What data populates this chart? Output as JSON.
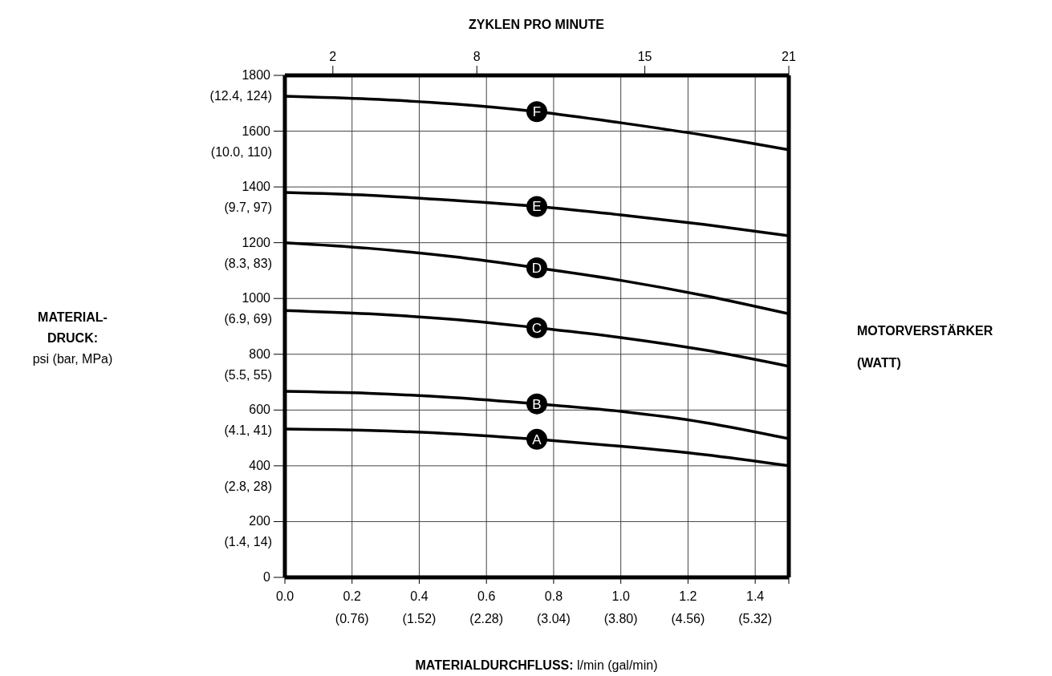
{
  "chart_data": {
    "type": "line",
    "x2label": "ZYKLEN PRO MINUTE",
    "xlabel": "MATERIALDURCHFLUSS: l/min (gal/min)",
    "annotations": [
      "MOTORVERSTÄRKER (WATT)",
      "MATERIAL-DRUCK: psi (bar, MPa)",
      "(0.76)",
      "(1.52)",
      "(2.28)",
      "(3.04)",
      "(3.80)",
      "(4.56)",
      "(5.32)",
      "(1.4, 14)",
      "(2.8, 28)",
      "(4.1, 41)",
      "(5.5, 55)",
      "(6.9, 69)",
      "(8.3, 83)",
      "(9.7, 97)",
      "(10.0, 110)",
      "(12.4, 124)"
    ],
    "x": [
      0,
      0.25,
      0.5,
      0.75,
      1.0,
      1.25,
      1.5
    ],
    "series": [
      {
        "name": "A",
        "color": "#000000",
        "values": [
          532,
          527,
          515,
          495,
          470,
          440,
          400
        ]
      },
      {
        "name": "B",
        "color": "#000000",
        "values": [
          667,
          660,
          645,
          622,
          595,
          555,
          497
        ]
      },
      {
        "name": "C",
        "color": "#000000",
        "values": [
          957,
          945,
          925,
          895,
          860,
          815,
          757
        ]
      },
      {
        "name": "D",
        "color": "#000000",
        "values": [
          1200,
          1180,
          1150,
          1110,
          1065,
          1010,
          945
        ]
      },
      {
        "name": "E",
        "color": "#000000",
        "values": [
          1380,
          1370,
          1352,
          1330,
          1300,
          1265,
          1225
        ]
      },
      {
        "name": "F",
        "color": "#000000",
        "values": [
          1725,
          1715,
          1698,
          1670,
          1630,
          1585,
          1533
        ]
      }
    ],
    "xlim": [
      0,
      1.5
    ],
    "xticks": [
      {
        "value": 0,
        "label": "0.0"
      },
      0.2,
      0.4,
      0.6,
      0.8,
      {
        "value": 1.0,
        "label": "1.0"
      },
      1.2,
      1.4,
      {
        "value": 1.5,
        "label": null
      }
    ],
    "x2lim": [
      0,
      21
    ],
    "x2ticks": [
      2,
      8,
      15,
      21
    ],
    "ylim": [
      0,
      1800
    ],
    "yticks": [
      0,
      200,
      400,
      600,
      800,
      1000,
      1200,
      1400,
      1600,
      1800
    ],
    "grid": true,
    "legend": false,
    "marker": "none",
    "line_style": "solid"
  }
}
